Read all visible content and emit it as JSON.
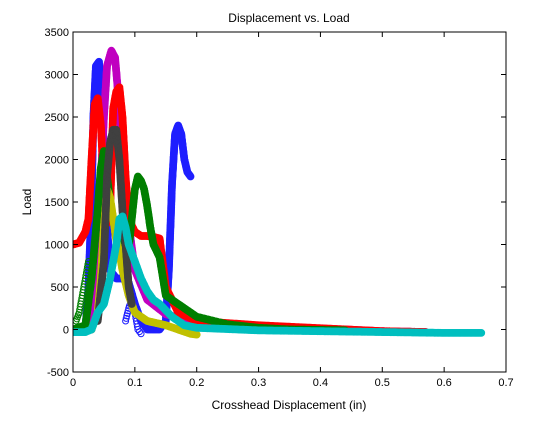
{
  "chart_data": {
    "type": "scatter",
    "title": "Displacement vs. Load",
    "xlabel": "Crosshead Displacement (in)",
    "ylabel": "Load",
    "xlim": [
      0,
      0.7
    ],
    "ylim": [
      -500,
      3500
    ],
    "xticks": [
      0,
      0.1,
      0.2,
      0.3,
      0.4,
      0.5,
      0.6,
      0.7
    ],
    "yticks": [
      -500,
      0,
      500,
      1000,
      1500,
      2000,
      2500,
      3000,
      3500
    ],
    "grid": false,
    "legend": "none",
    "series": [
      {
        "color": "#1f1fff",
        "style": "filled",
        "points": [
          [
            0.0,
            0
          ],
          [
            0.02,
            0
          ],
          [
            0.025,
            500
          ],
          [
            0.03,
            1500
          ],
          [
            0.033,
            2500
          ],
          [
            0.037,
            3100
          ],
          [
            0.042,
            3150
          ],
          [
            0.047,
            2700
          ],
          [
            0.052,
            1600
          ],
          [
            0.057,
            1000
          ],
          [
            0.06,
            700
          ],
          [
            0.07,
            600
          ],
          [
            0.08,
            600
          ],
          [
            0.09,
            550
          ],
          [
            0.1,
            300
          ],
          [
            0.11,
            100
          ],
          [
            0.12,
            0
          ],
          [
            0.13,
            0
          ],
          [
            0.14,
            0
          ],
          [
            0.15,
            100
          ],
          [
            0.155,
            700
          ],
          [
            0.16,
            1700
          ],
          [
            0.165,
            2300
          ],
          [
            0.17,
            2400
          ],
          [
            0.175,
            2300
          ],
          [
            0.18,
            2000
          ],
          [
            0.185,
            1850
          ],
          [
            0.19,
            1800
          ]
        ]
      },
      {
        "color": "#1f1fff",
        "style": "open",
        "points": [
          [
            0.085,
            100
          ],
          [
            0.09,
            250
          ],
          [
            0.095,
            350
          ],
          [
            0.1,
            200
          ],
          [
            0.105,
            0
          ],
          [
            0.11,
            -50
          ]
        ]
      },
      {
        "color": "#c000c0",
        "style": "filled",
        "points": [
          [
            0.0,
            0
          ],
          [
            0.03,
            0
          ],
          [
            0.04,
            1000
          ],
          [
            0.05,
            2500
          ],
          [
            0.055,
            3100
          ],
          [
            0.062,
            3280
          ],
          [
            0.068,
            3200
          ],
          [
            0.075,
            2600
          ],
          [
            0.085,
            1500
          ],
          [
            0.1,
            700
          ],
          [
            0.12,
            350
          ],
          [
            0.15,
            180
          ],
          [
            0.2,
            80
          ],
          [
            0.3,
            30
          ],
          [
            0.4,
            10
          ],
          [
            0.44,
            0
          ],
          [
            0.5,
            -20
          ],
          [
            0.57,
            -30
          ]
        ]
      },
      {
        "color": "#ff0000",
        "style": "filled",
        "points": [
          [
            0.0,
            1000
          ],
          [
            0.01,
            1020
          ],
          [
            0.02,
            1150
          ],
          [
            0.025,
            1300
          ],
          [
            0.03,
            2000
          ],
          [
            0.035,
            2650
          ],
          [
            0.04,
            2720
          ],
          [
            0.045,
            2400
          ],
          [
            0.05,
            1700
          ],
          [
            0.055,
            1250
          ],
          [
            0.06,
            1400
          ],
          [
            0.065,
            2600
          ],
          [
            0.07,
            2800
          ],
          [
            0.075,
            2850
          ],
          [
            0.08,
            2500
          ],
          [
            0.085,
            1800
          ],
          [
            0.09,
            1300
          ],
          [
            0.1,
            1150
          ],
          [
            0.11,
            1100
          ],
          [
            0.12,
            1100
          ],
          [
            0.13,
            1090
          ],
          [
            0.14,
            1070
          ],
          [
            0.15,
            500
          ],
          [
            0.17,
            200
          ],
          [
            0.2,
            100
          ],
          [
            0.3,
            50
          ],
          [
            0.5,
            -20
          ],
          [
            0.57,
            -30
          ]
        ]
      },
      {
        "color": "#007f00",
        "style": "filled",
        "points": [
          [
            0.0,
            0
          ],
          [
            0.02,
            50
          ],
          [
            0.03,
            600
          ],
          [
            0.04,
            1400
          ],
          [
            0.045,
            1900
          ],
          [
            0.05,
            2100
          ],
          [
            0.055,
            1800
          ],
          [
            0.06,
            1500
          ],
          [
            0.065,
            1300
          ],
          [
            0.07,
            1100
          ],
          [
            0.08,
            900
          ],
          [
            0.09,
            950
          ],
          [
            0.1,
            1650
          ],
          [
            0.105,
            1800
          ],
          [
            0.11,
            1750
          ],
          [
            0.115,
            1650
          ],
          [
            0.12,
            1450
          ],
          [
            0.125,
            1200
          ],
          [
            0.13,
            1000
          ],
          [
            0.14,
            850
          ],
          [
            0.15,
            400
          ],
          [
            0.2,
            150
          ],
          [
            0.25,
            60
          ],
          [
            0.3,
            20
          ],
          [
            0.35,
            0
          ],
          [
            0.44,
            -10
          ]
        ]
      },
      {
        "color": "#007f00",
        "style": "open",
        "points": [
          [
            0.005,
            100
          ],
          [
            0.01,
            200
          ],
          [
            0.015,
            400
          ],
          [
            0.02,
            600
          ],
          [
            0.025,
            800
          ]
        ]
      },
      {
        "color": "#c0c000",
        "style": "filled",
        "points": [
          [
            0.03,
            0
          ],
          [
            0.04,
            200
          ],
          [
            0.045,
            600
          ],
          [
            0.05,
            1200
          ],
          [
            0.055,
            1650
          ],
          [
            0.06,
            1550
          ],
          [
            0.065,
            1300
          ],
          [
            0.07,
            1050
          ],
          [
            0.075,
            900
          ],
          [
            0.08,
            700
          ],
          [
            0.09,
            400
          ],
          [
            0.1,
            200
          ],
          [
            0.12,
            100
          ],
          [
            0.15,
            50
          ],
          [
            0.19,
            -50
          ],
          [
            0.2,
            -60
          ]
        ]
      },
      {
        "color": "#404040",
        "style": "filled",
        "points": [
          [
            0.04,
            100
          ],
          [
            0.05,
            800
          ],
          [
            0.055,
            1800
          ],
          [
            0.06,
            2200
          ],
          [
            0.065,
            2350
          ],
          [
            0.07,
            2350
          ],
          [
            0.075,
            2000
          ],
          [
            0.08,
            1400
          ],
          [
            0.085,
            1000
          ],
          [
            0.09,
            500
          ],
          [
            0.095,
            300
          ]
        ]
      },
      {
        "color": "#00bfbf",
        "style": "filled",
        "points": [
          [
            0.0,
            -30
          ],
          [
            0.02,
            -30
          ],
          [
            0.03,
            0
          ],
          [
            0.04,
            200
          ],
          [
            0.05,
            300
          ],
          [
            0.06,
            600
          ],
          [
            0.07,
            1000
          ],
          [
            0.075,
            1300
          ],
          [
            0.08,
            1330
          ],
          [
            0.085,
            1200
          ],
          [
            0.09,
            1000
          ],
          [
            0.1,
            800
          ],
          [
            0.11,
            600
          ],
          [
            0.12,
            450
          ],
          [
            0.13,
            350
          ],
          [
            0.14,
            300
          ],
          [
            0.16,
            150
          ],
          [
            0.18,
            50
          ],
          [
            0.2,
            20
          ],
          [
            0.3,
            -10
          ],
          [
            0.4,
            -20
          ],
          [
            0.5,
            -30
          ],
          [
            0.6,
            -40
          ],
          [
            0.66,
            -40
          ]
        ]
      }
    ]
  }
}
